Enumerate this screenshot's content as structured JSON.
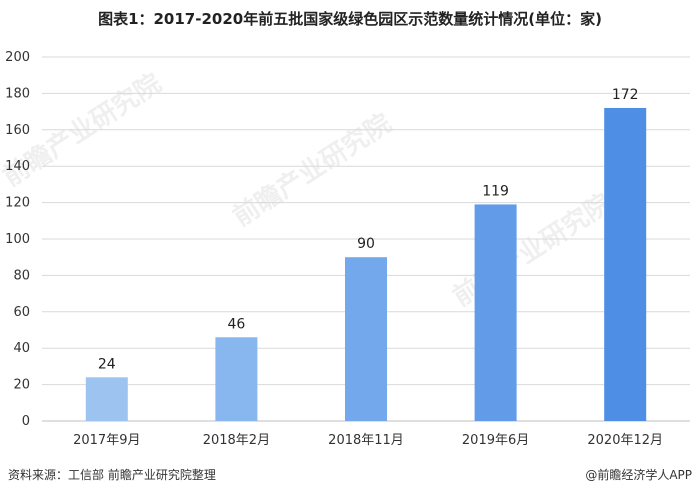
{
  "title": "图表1：2017-2020年前五批国家级绿色园区示范数量统计情况(单位：家)",
  "source": "资料来源：工信部 前瞻产业研究院整理",
  "brand": "@前瞻经济学人APP",
  "watermark": "前瞻产业研究院",
  "chart_data": {
    "type": "bar",
    "categories": [
      "2017年9月",
      "2018年2月",
      "2018年11月",
      "2019年6月",
      "2020年12月"
    ],
    "values": [
      24,
      46,
      90,
      119,
      172
    ],
    "ylim": [
      0,
      200
    ],
    "yticks": [
      0,
      20,
      40,
      60,
      80,
      100,
      120,
      140,
      160,
      180,
      200
    ],
    "grid": true,
    "bar_colors": [
      "#9dc3f1",
      "#88b6ef",
      "#74a8ec",
      "#629ce9",
      "#4e8fe5"
    ]
  }
}
